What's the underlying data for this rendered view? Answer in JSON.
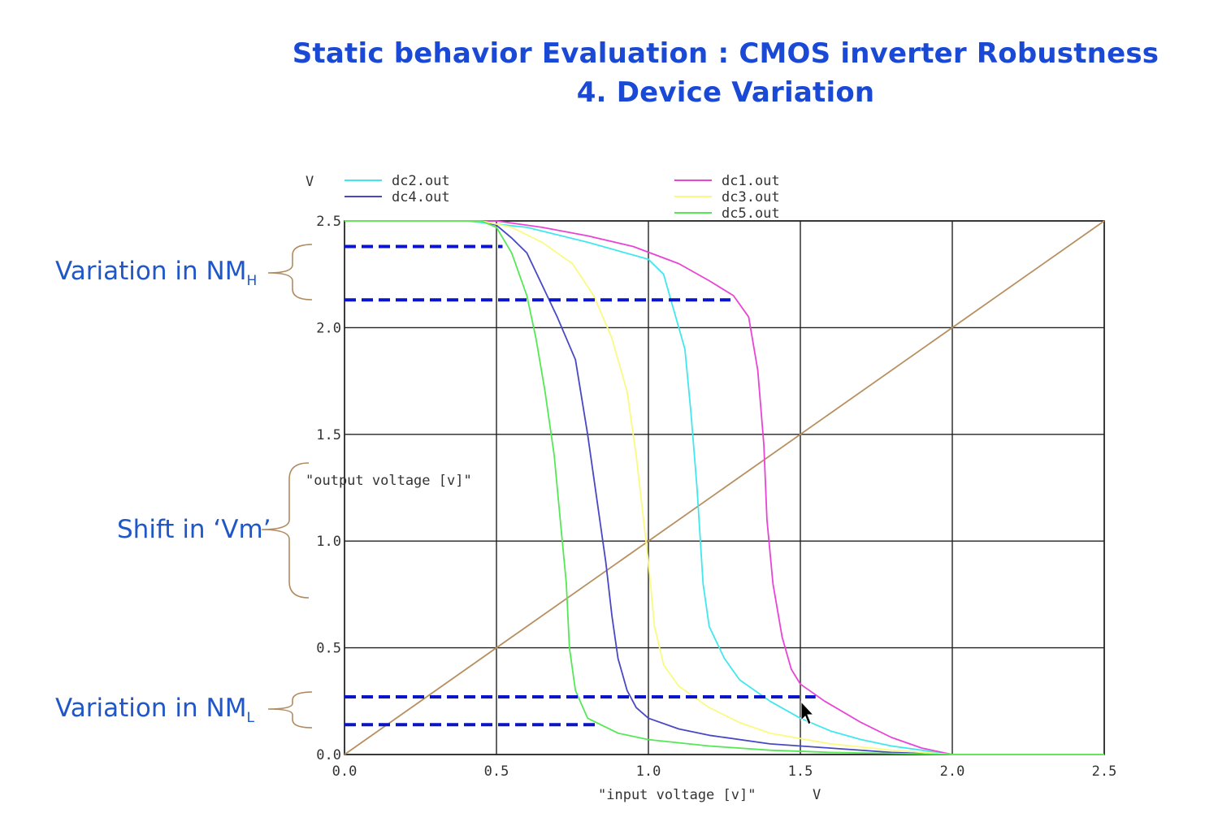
{
  "slide": {
    "title_line1": "Static behavior Evaluation : CMOS inverter Robustness",
    "title_line2": "4. Device Variation",
    "annotations": {
      "nmh_main": "Variation in NM",
      "nmh_sub": "H",
      "vm_shift": "Shift in ‘Vm’",
      "nml_main": "Variation in NM",
      "nml_sub": "L"
    },
    "colors": {
      "title": "#1a49d6",
      "annotation": "#1f57c9",
      "brace": "#b08a60",
      "guide_dashes": "#0a14c8"
    }
  },
  "chart_data": {
    "type": "line",
    "y_unit": "V",
    "x_unit": "V",
    "xlabel": "\"input voltage [v]\"",
    "ylabel": "\"output voltage [v]\"",
    "xlim": [
      0,
      2.5
    ],
    "ylim": [
      0,
      2.5
    ],
    "x_ticks": [
      "0.0",
      "0.5",
      "1.0",
      "1.5",
      "2.0",
      "2.5"
    ],
    "y_ticks": [
      "0.0",
      "0.5",
      "1.0",
      "1.5",
      "2.0",
      "2.5"
    ],
    "grid": true,
    "legend_placement": "top",
    "series": [
      {
        "name": "dc2.out",
        "color": "#40e8ee",
        "points": [
          [
            0,
            2.5
          ],
          [
            0.4,
            2.5
          ],
          [
            0.6,
            2.47
          ],
          [
            0.8,
            2.4
          ],
          [
            1.0,
            2.32
          ],
          [
            1.05,
            2.25
          ],
          [
            1.08,
            2.1
          ],
          [
            1.12,
            1.9
          ],
          [
            1.14,
            1.6
          ],
          [
            1.16,
            1.25
          ],
          [
            1.18,
            0.8
          ],
          [
            1.2,
            0.6
          ],
          [
            1.25,
            0.45
          ],
          [
            1.3,
            0.35
          ],
          [
            1.4,
            0.25
          ],
          [
            1.5,
            0.17
          ],
          [
            1.6,
            0.11
          ],
          [
            1.7,
            0.07
          ],
          [
            1.8,
            0.04
          ],
          [
            1.9,
            0.02
          ],
          [
            2.0,
            0.0
          ],
          [
            2.5,
            0.0
          ]
        ]
      },
      {
        "name": "dc4.out",
        "color": "#4848c4",
        "points": [
          [
            0,
            2.5
          ],
          [
            0.45,
            2.5
          ],
          [
            0.5,
            2.48
          ],
          [
            0.55,
            2.42
          ],
          [
            0.6,
            2.35
          ],
          [
            0.65,
            2.2
          ],
          [
            0.7,
            2.05
          ],
          [
            0.76,
            1.85
          ],
          [
            0.8,
            1.5
          ],
          [
            0.83,
            1.2
          ],
          [
            0.86,
            0.9
          ],
          [
            0.88,
            0.65
          ],
          [
            0.9,
            0.45
          ],
          [
            0.93,
            0.3
          ],
          [
            0.96,
            0.22
          ],
          [
            1.0,
            0.17
          ],
          [
            1.1,
            0.12
          ],
          [
            1.2,
            0.09
          ],
          [
            1.4,
            0.05
          ],
          [
            1.6,
            0.03
          ],
          [
            1.8,
            0.01
          ],
          [
            2.0,
            0.0
          ],
          [
            2.5,
            0.0
          ]
        ]
      },
      {
        "name": "dc1.out",
        "color": "#e844d6",
        "points": [
          [
            0,
            2.5
          ],
          [
            0.5,
            2.5
          ],
          [
            0.65,
            2.47
          ],
          [
            0.8,
            2.43
          ],
          [
            0.95,
            2.38
          ],
          [
            1.1,
            2.3
          ],
          [
            1.2,
            2.22
          ],
          [
            1.28,
            2.15
          ],
          [
            1.33,
            2.05
          ],
          [
            1.36,
            1.8
          ],
          [
            1.38,
            1.45
          ],
          [
            1.39,
            1.1
          ],
          [
            1.41,
            0.8
          ],
          [
            1.44,
            0.55
          ],
          [
            1.47,
            0.4
          ],
          [
            1.5,
            0.33
          ],
          [
            1.58,
            0.25
          ],
          [
            1.7,
            0.15
          ],
          [
            1.8,
            0.08
          ],
          [
            1.9,
            0.03
          ],
          [
            2.0,
            0.0
          ],
          [
            2.5,
            0.0
          ]
        ]
      },
      {
        "name": "dc3.out",
        "color": "#fafa82",
        "points": [
          [
            0,
            2.5
          ],
          [
            0.45,
            2.5
          ],
          [
            0.55,
            2.47
          ],
          [
            0.65,
            2.4
          ],
          [
            0.75,
            2.3
          ],
          [
            0.82,
            2.15
          ],
          [
            0.88,
            1.95
          ],
          [
            0.93,
            1.7
          ],
          [
            0.96,
            1.4
          ],
          [
            0.98,
            1.15
          ],
          [
            1.0,
            0.9
          ],
          [
            1.02,
            0.6
          ],
          [
            1.05,
            0.42
          ],
          [
            1.1,
            0.32
          ],
          [
            1.2,
            0.22
          ],
          [
            1.3,
            0.15
          ],
          [
            1.4,
            0.1
          ],
          [
            1.6,
            0.05
          ],
          [
            1.8,
            0.02
          ],
          [
            2.0,
            0.0
          ],
          [
            2.5,
            0.0
          ]
        ]
      },
      {
        "name": "dc5.out",
        "color": "#55e855",
        "points": [
          [
            0,
            2.5
          ],
          [
            0.45,
            2.5
          ],
          [
            0.5,
            2.47
          ],
          [
            0.55,
            2.35
          ],
          [
            0.6,
            2.15
          ],
          [
            0.63,
            1.95
          ],
          [
            0.66,
            1.7
          ],
          [
            0.69,
            1.4
          ],
          [
            0.71,
            1.1
          ],
          [
            0.73,
            0.8
          ],
          [
            0.74,
            0.5
          ],
          [
            0.76,
            0.3
          ],
          [
            0.8,
            0.17
          ],
          [
            0.9,
            0.1
          ],
          [
            1.0,
            0.07
          ],
          [
            1.2,
            0.04
          ],
          [
            1.4,
            0.02
          ],
          [
            1.6,
            0.01
          ],
          [
            2.0,
            0.0
          ],
          [
            2.5,
            0.0
          ]
        ]
      },
      {
        "name": "",
        "color": "#b89060",
        "points": [
          [
            0,
            0
          ],
          [
            2.5,
            2.5
          ]
        ]
      }
    ],
    "legend_left": [
      "dc2.out",
      "dc4.out"
    ],
    "legend_right": [
      "dc1.out",
      "dc3.out",
      "dc5.out"
    ],
    "guide_dashes": [
      {
        "y": 2.38,
        "x_from": 0.0,
        "x_to": 0.52
      },
      {
        "y": 2.13,
        "x_from": 0.0,
        "x_to": 1.27
      },
      {
        "y": 0.27,
        "x_from": 0.0,
        "x_to": 1.55
      },
      {
        "y": 0.14,
        "x_from": 0.0,
        "x_to": 0.84
      }
    ]
  }
}
